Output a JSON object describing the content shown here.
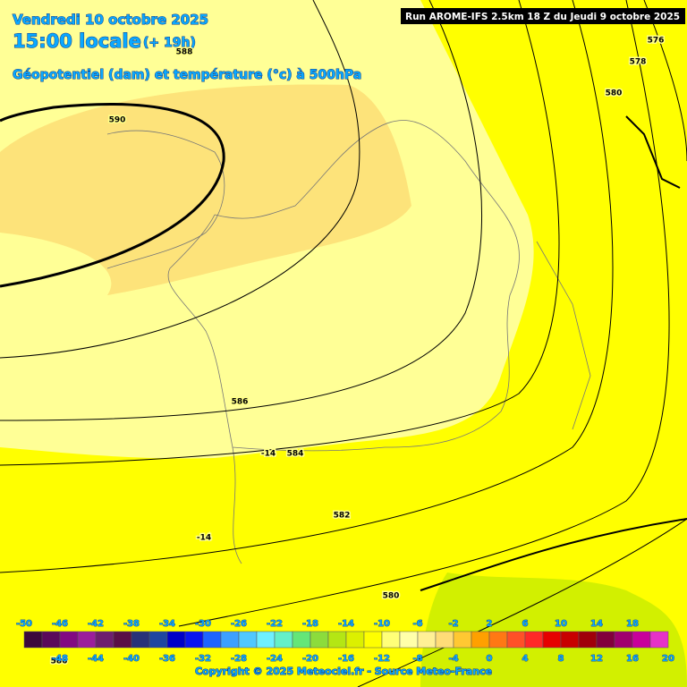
{
  "header": {
    "date": "Vendredi 10 octobre 2025",
    "time": "15:00 locale",
    "lead": "(+ 19h)",
    "subtitle": "Géopotentiel (dam) et température (°c) à 500hPa",
    "run": "Run AROME-IFS 2.5km 18 Z du Jeudi 9 octobre 2025"
  },
  "contour_labels": [
    "576",
    "578",
    "580",
    "590",
    "588",
    "586",
    "584",
    "-14",
    "582",
    "-14",
    "580",
    "586"
  ],
  "legend": {
    "values": [
      -50,
      -48,
      -46,
      -44,
      -42,
      -40,
      -38,
      -36,
      -34,
      -32,
      -30,
      -28,
      -26,
      -24,
      -22,
      -20,
      -18,
      -16,
      -14,
      -12,
      -10,
      -8,
      -6,
      -4,
      -2,
      0,
      2,
      4,
      6,
      8,
      10,
      12,
      14,
      16,
      18,
      20
    ],
    "colors": [
      "#3c0a3c",
      "#5a0a5a",
      "#820a82",
      "#9b1e9b",
      "#6e1e6e",
      "#5a0f46",
      "#283278",
      "#1e46a0",
      "#0000c8",
      "#0a14f0",
      "#1e64ff",
      "#3ca0ff",
      "#50c8ff",
      "#6ef0ff",
      "#64f0c8",
      "#64e678",
      "#8cdc3c",
      "#b4e614",
      "#dcf000",
      "#ffff00",
      "#ffff78",
      "#ffffaa",
      "#fff096",
      "#ffdc78",
      "#ffc832",
      "#ffa000",
      "#ff7814",
      "#ff5028",
      "#ff2828",
      "#e60000",
      "#c80000",
      "#a0000a",
      "#82003c",
      "#a0006e",
      "#c8009b",
      "#e632c8"
    ]
  },
  "footer": "Copyright © 2025 Meteociel.fr - Source Meteo-France"
}
